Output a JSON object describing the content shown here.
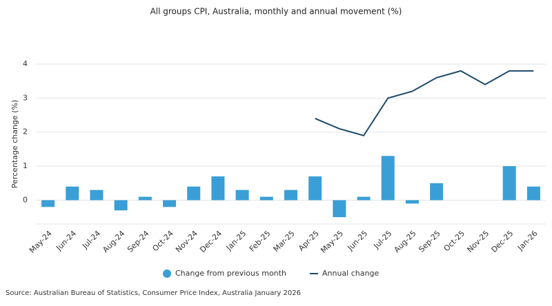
{
  "chart_data": {
    "type": "bar-line",
    "title": "All groups CPI, Australia, monthly and annual movement (%)",
    "y_label": "Percentage change (%)",
    "source": "Source: Australian Bureau of Statistics, Consumer Price Index, Australia January 2026",
    "categories": [
      "May-24",
      "Jun-24",
      "Jul-24",
      "Aug-24",
      "Sep-24",
      "Oct-24",
      "Nov-24",
      "Dec-24",
      "Jan-25",
      "Feb-25",
      "Mar-25",
      "Apr-25",
      "May-25",
      "Jun-25",
      "Jul-25",
      "Aug-25",
      "Sep-25",
      "Oct-25",
      "Nov-25",
      "Dec-25",
      "Jan-26"
    ],
    "series": [
      {
        "name": "Change from previous month",
        "type": "bar",
        "color": "#3a9fd6",
        "values": [
          -0.2,
          0.4,
          0.3,
          -0.3,
          0.1,
          -0.2,
          0.4,
          0.7,
          0.3,
          0.1,
          0.3,
          0.7,
          -0.5,
          0.1,
          1.3,
          -0.1,
          0.5,
          null,
          null,
          1.0,
          0.4
        ]
      },
      {
        "name": "Annual change",
        "type": "line",
        "color": "#1d4a6b",
        "values": [
          null,
          null,
          null,
          null,
          null,
          null,
          null,
          null,
          null,
          null,
          null,
          2.4,
          2.1,
          1.9,
          3.0,
          3.2,
          3.6,
          3.8,
          3.4,
          3.8,
          3.8
        ]
      }
    ],
    "ylim": [
      -0.7,
      4
    ],
    "yticks": [
      0,
      1,
      2,
      3,
      4
    ],
    "grid": true
  }
}
